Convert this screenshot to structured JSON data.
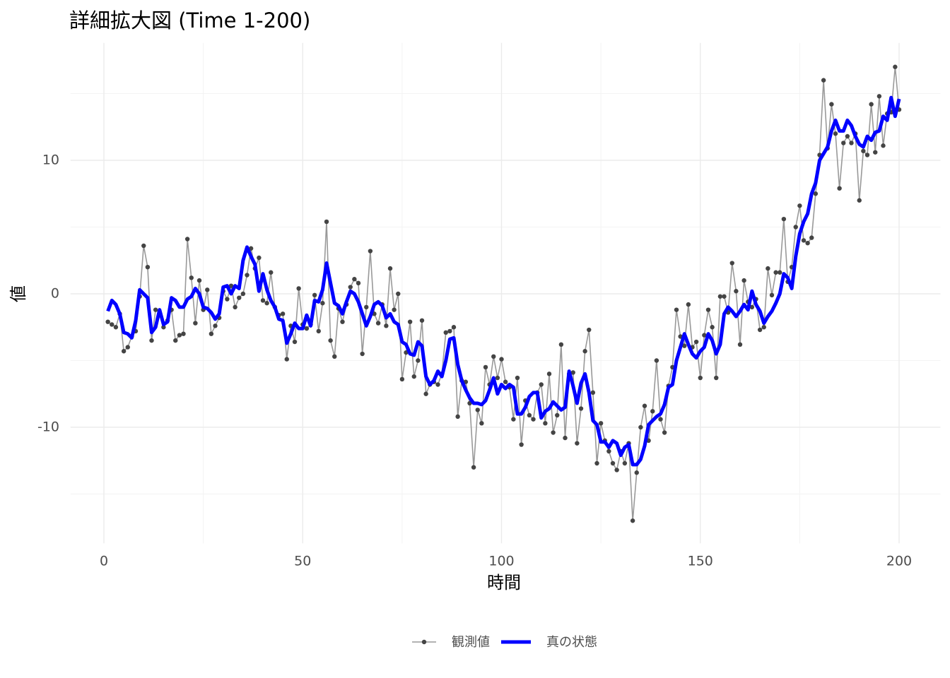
{
  "chart_data": {
    "type": "line",
    "title": "詳細拡大図 (Time 1-200)",
    "xlabel": "時間",
    "ylabel": "値",
    "x": [
      1,
      2,
      3,
      4,
      5,
      6,
      7,
      8,
      9,
      10,
      11,
      12,
      13,
      14,
      15,
      16,
      17,
      18,
      19,
      20,
      21,
      22,
      23,
      24,
      25,
      26,
      27,
      28,
      29,
      30,
      31,
      32,
      33,
      34,
      35,
      36,
      37,
      38,
      39,
      40,
      41,
      42,
      43,
      44,
      45,
      46,
      47,
      48,
      49,
      50,
      51,
      52,
      53,
      54,
      55,
      56,
      57,
      58,
      59,
      60,
      61,
      62,
      63,
      64,
      65,
      66,
      67,
      68,
      69,
      70,
      71,
      72,
      73,
      74,
      75,
      76,
      77,
      78,
      79,
      80,
      81,
      82,
      83,
      84,
      85,
      86,
      87,
      88,
      89,
      90,
      91,
      92,
      93,
      94,
      95,
      96,
      97,
      98,
      99,
      100,
      101,
      102,
      103,
      104,
      105,
      106,
      107,
      108,
      109,
      110,
      111,
      112,
      113,
      114,
      115,
      116,
      117,
      118,
      119,
      120,
      121,
      122,
      123,
      124,
      125,
      126,
      127,
      128,
      129,
      130,
      131,
      132,
      133,
      134,
      135,
      136,
      137,
      138,
      139,
      140,
      141,
      142,
      143,
      144,
      145,
      146,
      147,
      148,
      149,
      150,
      151,
      152,
      153,
      154,
      155,
      156,
      157,
      158,
      159,
      160,
      161,
      162,
      163,
      164,
      165,
      166,
      167,
      168,
      169,
      170,
      171,
      172,
      173,
      174,
      175,
      176,
      177,
      178,
      179,
      180,
      181,
      182,
      183,
      184,
      185,
      186,
      187,
      188,
      189,
      190,
      191,
      192,
      193,
      194,
      195,
      196,
      197,
      198,
      199,
      200
    ],
    "series": [
      {
        "name": "観測値",
        "color": "#999999",
        "point_color": "#444444",
        "markers": true,
        "values": [
          -2.1,
          -2.3,
          -2.5,
          -1.5,
          -4.3,
          -4.0,
          -3.2,
          -2.8,
          -0.2,
          3.6,
          2.0,
          -3.5,
          -1.2,
          -1.4,
          -2.5,
          -2.0,
          -1.2,
          -3.5,
          -3.1,
          -3.0,
          4.1,
          1.2,
          -2.2,
          1.0,
          -1.2,
          0.3,
          -3.0,
          -2.4,
          -1.8,
          0.2,
          -0.4,
          0.6,
          -1.0,
          -0.3,
          0.0,
          1.4,
          3.4,
          1.9,
          2.7,
          -0.5,
          -0.7,
          1.6,
          -1.0,
          -1.6,
          -1.5,
          -4.9,
          -2.4,
          -3.6,
          0.4,
          -2.3,
          -2.6,
          -2.3,
          -0.1,
          -2.8,
          -0.7,
          5.4,
          -3.5,
          -4.7,
          -1.1,
          -2.1,
          -0.8,
          0.5,
          1.1,
          0.8,
          -4.5,
          -1.0,
          3.2,
          -1.5,
          -2.2,
          -0.8,
          -2.4,
          1.9,
          -1.2,
          0.0,
          -6.4,
          -4.4,
          -2.1,
          -6.2,
          -5.0,
          -2.0,
          -7.5,
          -6.8,
          -6.6,
          -6.8,
          -6.0,
          -2.9,
          -2.8,
          -2.5,
          -9.2,
          -6.5,
          -6.6,
          -8.2,
          -13.0,
          -8.7,
          -9.7,
          -5.5,
          -6.8,
          -4.7,
          -6.3,
          -4.9,
          -6.6,
          -7.0,
          -9.4,
          -6.3,
          -11.3,
          -8.0,
          -9.1,
          -9.4,
          -7.4,
          -6.8,
          -9.7,
          -6.0,
          -10.4,
          -9.1,
          -3.8,
          -10.8,
          -6.0,
          -5.9,
          -11.2,
          -8.6,
          -4.3,
          -2.7,
          -7.4,
          -12.7,
          -9.7,
          -11.0,
          -11.8,
          -12.7,
          -13.2,
          -11.8,
          -12.7,
          -11.2,
          -17.0,
          -13.4,
          -10.0,
          -8.4,
          -11.0,
          -8.8,
          -5.0,
          -9.4,
          -10.4,
          -6.9,
          -5.5,
          -1.2,
          -3.2,
          -3.9,
          -0.8,
          -4.0,
          -3.6,
          -6.3,
          -3.1,
          -1.2,
          -2.5,
          -6.3,
          -0.2,
          -0.2,
          -1.4,
          2.3,
          0.2,
          -3.8,
          1.0,
          -0.6,
          -1.0,
          -0.4,
          -2.7,
          -2.5,
          1.9,
          -0.1,
          1.6,
          1.6,
          5.6,
          0.9,
          2.0,
          5.0,
          6.6,
          4.0,
          3.8,
          4.2,
          7.5,
          10.4,
          16.0,
          10.9,
          14.2,
          12.0,
          7.9,
          11.3,
          11.8,
          11.3,
          12.0,
          7.0,
          10.7,
          10.4,
          14.2,
          10.6,
          14.8,
          11.1,
          13.5,
          13.6,
          17.0,
          13.8
        ]
      },
      {
        "name": "真の状態",
        "color": "#0000ff",
        "markers": false,
        "values": [
          -1.3,
          -0.5,
          -0.8,
          -1.5,
          -2.9,
          -3.0,
          -3.3,
          -2.0,
          0.3,
          0.0,
          -0.3,
          -2.9,
          -2.5,
          -1.2,
          -2.3,
          -2.1,
          -0.3,
          -0.5,
          -1.0,
          -1.0,
          -0.4,
          -0.2,
          0.4,
          0.0,
          -1.0,
          -1.1,
          -1.4,
          -1.9,
          -1.5,
          0.5,
          0.6,
          0.0,
          0.6,
          0.4,
          2.5,
          3.5,
          2.8,
          2.2,
          0.2,
          1.5,
          0.3,
          -0.5,
          -1.0,
          -1.9,
          -2.0,
          -3.7,
          -3.0,
          -2.2,
          -2.6,
          -2.6,
          -1.6,
          -2.4,
          -0.5,
          -0.6,
          0.3,
          2.3,
          0.8,
          -0.7,
          -0.9,
          -1.5,
          -0.6,
          0.2,
          0.0,
          -0.6,
          -1.5,
          -2.4,
          -1.7,
          -0.8,
          -0.6,
          -0.9,
          -1.8,
          -1.5,
          -2.1,
          -2.3,
          -3.6,
          -3.8,
          -4.5,
          -4.6,
          -3.6,
          -3.9,
          -6.2,
          -6.8,
          -6.5,
          -5.8,
          -6.2,
          -5.0,
          -3.4,
          -3.3,
          -5.3,
          -6.5,
          -7.2,
          -7.8,
          -8.2,
          -8.2,
          -8.3,
          -8.0,
          -7.2,
          -6.3,
          -7.5,
          -6.8,
          -7.1,
          -6.8,
          -7.0,
          -9.0,
          -9.0,
          -8.5,
          -7.7,
          -7.4,
          -7.4,
          -9.3,
          -8.8,
          -8.6,
          -8.1,
          -8.4,
          -8.7,
          -8.5,
          -5.8,
          -6.9,
          -8.2,
          -6.7,
          -6.0,
          -7.4,
          -9.5,
          -9.8,
          -11.1,
          -11.1,
          -11.5,
          -11.0,
          -11.2,
          -12.1,
          -11.5,
          -11.3,
          -12.8,
          -12.8,
          -12.4,
          -11.4,
          -9.8,
          -9.5,
          -9.2,
          -9.0,
          -8.3,
          -7.0,
          -6.8,
          -5.0,
          -4.0,
          -3.0,
          -3.8,
          -4.5,
          -4.8,
          -4.3,
          -4.0,
          -3.0,
          -3.5,
          -4.5,
          -3.8,
          -1.5,
          -1.0,
          -1.3,
          -1.7,
          -1.3,
          -0.8,
          -1.2,
          0.2,
          -0.8,
          -1.3,
          -2.2,
          -1.7,
          -1.3,
          -0.7,
          0.0,
          1.5,
          1.2,
          0.4,
          2.8,
          4.5,
          5.4,
          6.0,
          7.5,
          8.3,
          10.0,
          10.5,
          11.0,
          12.2,
          13.0,
          12.2,
          12.2,
          13.0,
          12.6,
          11.8,
          11.2,
          11.0,
          11.8,
          11.5,
          12.1,
          12.2,
          13.3,
          13.0,
          14.7,
          13.3,
          14.6
        ]
      }
    ],
    "xlim": [
      -8.4,
      210.4
    ],
    "ylim": [
      -18.7,
      18.8
    ],
    "xticks": [
      0,
      50,
      100,
      150,
      200
    ],
    "yticks": [
      -10,
      0,
      10
    ],
    "xminor": [
      25,
      75,
      125,
      175
    ],
    "yminor": [
      -15,
      -5,
      5,
      15
    ],
    "grid": true,
    "legend": "bottom"
  }
}
